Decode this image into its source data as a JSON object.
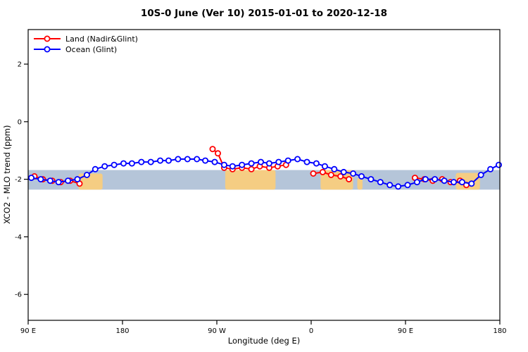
{
  "chart_data": {
    "type": "line",
    "title": "10S-0 June (Ver 10)   2015-01-01 to 2020-12-18",
    "xlabel": "Longitude (deg E)",
    "ylabel": "XCO2 - MLO trend (ppm)",
    "xlim": [
      90,
      540
    ],
    "ylim": [
      -6.9,
      3.2
    ],
    "grid": false,
    "legend_position": "top-left",
    "x_ticks": [
      {
        "value": 90,
        "label": "90 E"
      },
      {
        "value": 180,
        "label": "180"
      },
      {
        "value": 270,
        "label": "90 W"
      },
      {
        "value": 360,
        "label": "0"
      },
      {
        "value": 450,
        "label": "90 E"
      },
      {
        "value": 540,
        "label": "180"
      }
    ],
    "y_ticks": [
      {
        "value": 2,
        "label": "2"
      },
      {
        "value": 0,
        "label": "0"
      },
      {
        "value": -2,
        "label": "-2"
      },
      {
        "value": -4,
        "label": "-4"
      },
      {
        "value": -6,
        "label": "-6"
      }
    ],
    "map_band": {
      "y_top": -1.68,
      "y_bottom": -2.36,
      "ocean_color": "#b5c5d9",
      "land_color": "#f5cd83",
      "land_segments": [
        {
          "x": [
            138,
            161
          ],
          "y": [
            -1.8,
            -2.36
          ]
        },
        {
          "x": [
            278,
            326
          ],
          "y": [
            -1.68,
            -2.36
          ]
        },
        {
          "x": [
            369,
            400
          ],
          "y": [
            -1.68,
            -2.36
          ]
        },
        {
          "x": [
            404,
            409
          ],
          "y": [
            -1.95,
            -2.36
          ]
        },
        {
          "x": [
            498,
            521
          ],
          "y": [
            -1.78,
            -2.36
          ]
        }
      ]
    },
    "series": [
      {
        "name": "Land (Nadir&Glint)",
        "color": "#ff0000",
        "marker": "circle",
        "segments": [
          [
            [
              96,
              -1.9
            ],
            [
              104,
              -2.0
            ],
            [
              113,
              -2.05
            ],
            [
              121,
              -2.1
            ],
            [
              130,
              -2.05
            ],
            [
              139,
              -2.15
            ]
          ],
          [
            [
              266,
              -0.95
            ],
            [
              271,
              -1.1
            ],
            [
              277,
              -1.6
            ],
            [
              285,
              -1.65
            ],
            [
              294,
              -1.6
            ],
            [
              303,
              -1.65
            ],
            [
              311,
              -1.55
            ],
            [
              320,
              -1.6
            ],
            [
              328,
              -1.55
            ],
            [
              336,
              -1.5
            ]
          ],
          [
            [
              362,
              -1.8
            ],
            [
              371,
              -1.75
            ],
            [
              379,
              -1.85
            ],
            [
              388,
              -1.9
            ],
            [
              396,
              -2.0
            ]
          ],
          [
            [
              459,
              -1.95
            ],
            [
              468,
              -2.0
            ],
            [
              476,
              -2.05
            ],
            [
              485,
              -2.0
            ],
            [
              493,
              -2.1
            ],
            [
              502,
              -2.05
            ],
            [
              508,
              -2.2
            ]
          ]
        ]
      },
      {
        "name": "Ocean (Glint)",
        "color": "#0000ff",
        "marker": "circle",
        "segments": [
          [
            [
              93,
              -1.95
            ],
            [
              102,
              -2.0
            ],
            [
              111,
              -2.05
            ],
            [
              119,
              -2.1
            ],
            [
              128,
              -2.05
            ],
            [
              137,
              -2.0
            ],
            [
              146,
              -1.85
            ],
            [
              154,
              -1.65
            ],
            [
              163,
              -1.55
            ],
            [
              172,
              -1.5
            ],
            [
              181,
              -1.45
            ],
            [
              189,
              -1.45
            ],
            [
              198,
              -1.4
            ],
            [
              207,
              -1.4
            ],
            [
              216,
              -1.35
            ],
            [
              224,
              -1.35
            ],
            [
              233,
              -1.3
            ],
            [
              242,
              -1.3
            ],
            [
              251,
              -1.3
            ],
            [
              259,
              -1.35
            ],
            [
              268,
              -1.4
            ],
            [
              277,
              -1.5
            ],
            [
              285,
              -1.55
            ],
            [
              294,
              -1.5
            ],
            [
              303,
              -1.45
            ],
            [
              312,
              -1.4
            ],
            [
              320,
              -1.45
            ],
            [
              329,
              -1.4
            ],
            [
              338,
              -1.35
            ],
            [
              347,
              -1.3
            ],
            [
              356,
              -1.4
            ],
            [
              365,
              -1.45
            ],
            [
              373,
              -1.55
            ],
            [
              382,
              -1.65
            ],
            [
              391,
              -1.75
            ],
            [
              400,
              -1.8
            ],
            [
              408,
              -1.9
            ],
            [
              417,
              -2.0
            ],
            [
              426,
              -2.1
            ],
            [
              435,
              -2.2
            ],
            [
              443,
              -2.25
            ],
            [
              452,
              -2.2
            ],
            [
              461,
              -2.1
            ],
            [
              469,
              -2.0
            ],
            [
              478,
              -2.0
            ],
            [
              487,
              -2.05
            ],
            [
              496,
              -2.1
            ],
            [
              504,
              -2.1
            ],
            [
              513,
              -2.15
            ],
            [
              522,
              -1.85
            ],
            [
              531,
              -1.65
            ],
            [
              539,
              -1.5
            ]
          ]
        ]
      }
    ]
  }
}
